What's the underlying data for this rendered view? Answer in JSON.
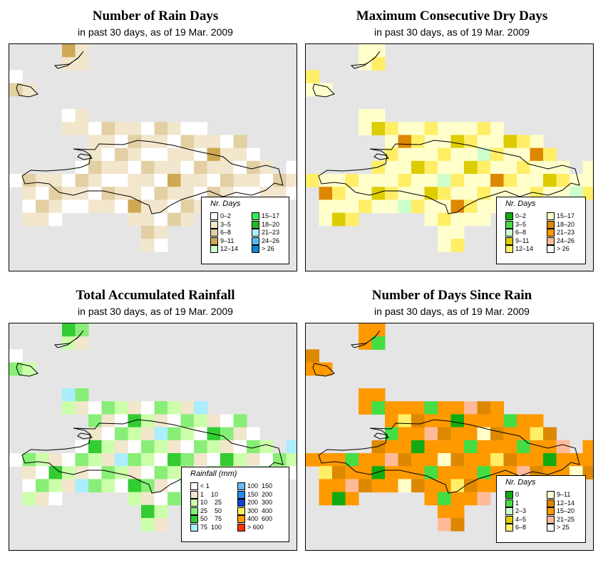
{
  "colors": {
    "background_sea": "#e5e5e5",
    "coast": "#000000"
  },
  "panels": [
    {
      "id": "rain_days",
      "title": "Number of Rain Days",
      "subtitle": "in past 30 days, as of  19 Mar. 2009",
      "legend": {
        "title": "Nr. Days",
        "items": [
          {
            "label": "0–2",
            "color": "#ffffff"
          },
          {
            "label": "3–5",
            "color": "#f2e6cc"
          },
          {
            "label": "6–8",
            "color": "#e2cfa3"
          },
          {
            "label": "9–11",
            "color": "#cfa853"
          },
          {
            "label": "12–14",
            "color": "#ccffcc"
          },
          {
            "label": "15–17",
            "color": "#33ee55"
          },
          {
            "label": "18–20",
            "color": "#22bb22"
          },
          {
            "label": "21–23",
            "color": "#aaeeff"
          },
          {
            "label": "24–26",
            "color": "#55bbee"
          },
          {
            "label": "> 26",
            "color": "#1188cc"
          }
        ]
      }
    },
    {
      "id": "max_dry",
      "title": "Maximum Consecutive Dry Days",
      "subtitle": "in past 30 days, as of  19 Mar. 2009",
      "legend": {
        "title": "Nr. Days",
        "items": [
          {
            "label": "0–2",
            "color": "#11aa11"
          },
          {
            "label": "3–5",
            "color": "#44dd44"
          },
          {
            "label": "6–8",
            "color": "#ccffcc"
          },
          {
            "label": "9–11",
            "color": "#ddcc00"
          },
          {
            "label": "12–14",
            "color": "#ffee66"
          },
          {
            "label": "15–17",
            "color": "#ffffcc"
          },
          {
            "label": "18–20",
            "color": "#dd8800"
          },
          {
            "label": "21–23",
            "color": "#ff9900"
          },
          {
            "label": "24–26",
            "color": "#ffbb99"
          },
          {
            "label": "> 26",
            "color": "#ffffff"
          }
        ]
      }
    },
    {
      "id": "total_rain",
      "title": "Total Accumulated Rainfall",
      "subtitle": "in past 30 days, as of  19 Mar. 2009",
      "legend": {
        "title": "Rainfall (mm)",
        "items": [
          {
            "label": "< 1",
            "color": "#ffffff"
          },
          {
            "label": "1    10",
            "color": "#f2e6cc"
          },
          {
            "label": "10    25",
            "color": "#ccffaa"
          },
          {
            "label": "25    50",
            "color": "#88ee77"
          },
          {
            "label": "50    75",
            "color": "#33cc33"
          },
          {
            "label": "75  100",
            "color": "#aaeeff"
          },
          {
            "label": "100  150",
            "color": "#66bbee"
          },
          {
            "label": "150  200",
            "color": "#2288ee"
          },
          {
            "label": "200  300",
            "color": "#1144cc"
          },
          {
            "label": "300  400",
            "color": "#ffee55"
          },
          {
            "label": "400  600",
            "color": "#ff9900"
          },
          {
            "label": "> 600",
            "color": "#ff3300"
          }
        ]
      }
    },
    {
      "id": "since_rain",
      "title": "Number of Days Since Rain",
      "subtitle": "in past 30 days, as of  19 Mar. 2009",
      "legend": {
        "title": "Nr. Days",
        "items": [
          {
            "label": "0",
            "color": "#11aa11"
          },
          {
            "label": "1",
            "color": "#44dd44"
          },
          {
            "label": "2–3",
            "color": "#ccffcc"
          },
          {
            "label": "4–5",
            "color": "#ddcc00"
          },
          {
            "label": "6–8",
            "color": "#ffee66"
          },
          {
            "label": "9–11",
            "color": "#ffffcc"
          },
          {
            "label": "12–14",
            "color": "#dd8800"
          },
          {
            "label": "15–20",
            "color": "#ff9900"
          },
          {
            "label": "21–25",
            "color": "#ffbb99"
          },
          {
            "label": "> 25",
            "color": "#ffffff"
          }
        ]
      }
    }
  ]
}
